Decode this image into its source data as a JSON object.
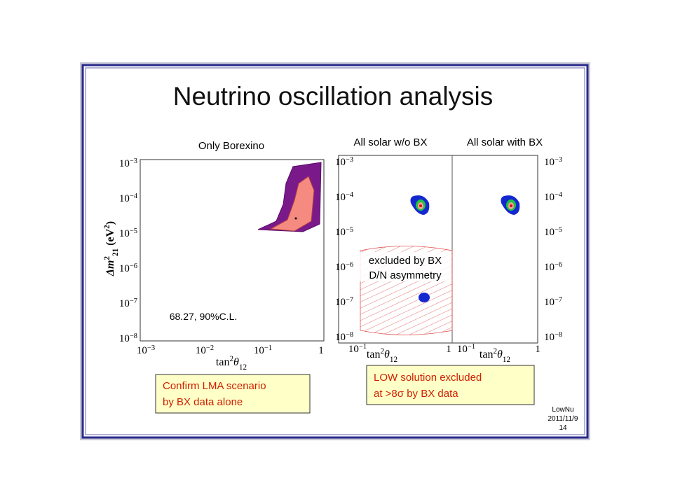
{
  "title": "Neutrino oscillation analysis",
  "left_plot": {
    "title": "Only Borexino",
    "annotation": "68.27, 90%C.L.",
    "y_label": {
      "sym": "Δm",
      "sup": "2",
      "sub": "21",
      "unit": " (eV",
      "unit_sup": "2",
      "close": ")"
    },
    "x_label": {
      "text": "tan",
      "sup": "2",
      "sym": "θ",
      "sub": "12"
    },
    "yticks": [
      {
        "base": "10",
        "exp": "−3"
      },
      {
        "base": "10",
        "exp": "−4"
      },
      {
        "base": "10",
        "exp": "−5"
      },
      {
        "base": "10",
        "exp": "−6"
      },
      {
        "base": "10",
        "exp": "−7"
      },
      {
        "base": "10",
        "exp": "−8"
      }
    ],
    "xticks": [
      {
        "base": "10",
        "exp": "−3"
      },
      {
        "base": "10",
        "exp": "−2"
      },
      {
        "base": "10",
        "exp": "−1"
      },
      {
        "base": "1"
      }
    ]
  },
  "right_plot": {
    "panel_titles": [
      "All solar w/o BX",
      "All solar with BX"
    ],
    "annotation": [
      "excluded by BX",
      "D/N asymmetry"
    ],
    "x_label": {
      "text": "tan",
      "sup": "2",
      "sym": "θ",
      "sub": "12"
    },
    "yticks": [
      {
        "base": "10",
        "exp": "−3"
      },
      {
        "base": "10",
        "exp": "−4"
      },
      {
        "base": "10",
        "exp": "−5"
      },
      {
        "base": "10",
        "exp": "−6"
      },
      {
        "base": "10",
        "exp": "−7"
      },
      {
        "base": "10",
        "exp": "−8"
      }
    ],
    "xticks": [
      {
        "base": "10",
        "exp": "−1"
      },
      {
        "base": "1"
      }
    ]
  },
  "left_box": [
    "Confirm LMA scenario",
    "by BX data alone"
  ],
  "right_box": [
    "LOW solution excluded",
    "at >8σ by BX data"
  ],
  "footer": [
    "LowNu",
    "2011/11/9",
    "14"
  ]
}
